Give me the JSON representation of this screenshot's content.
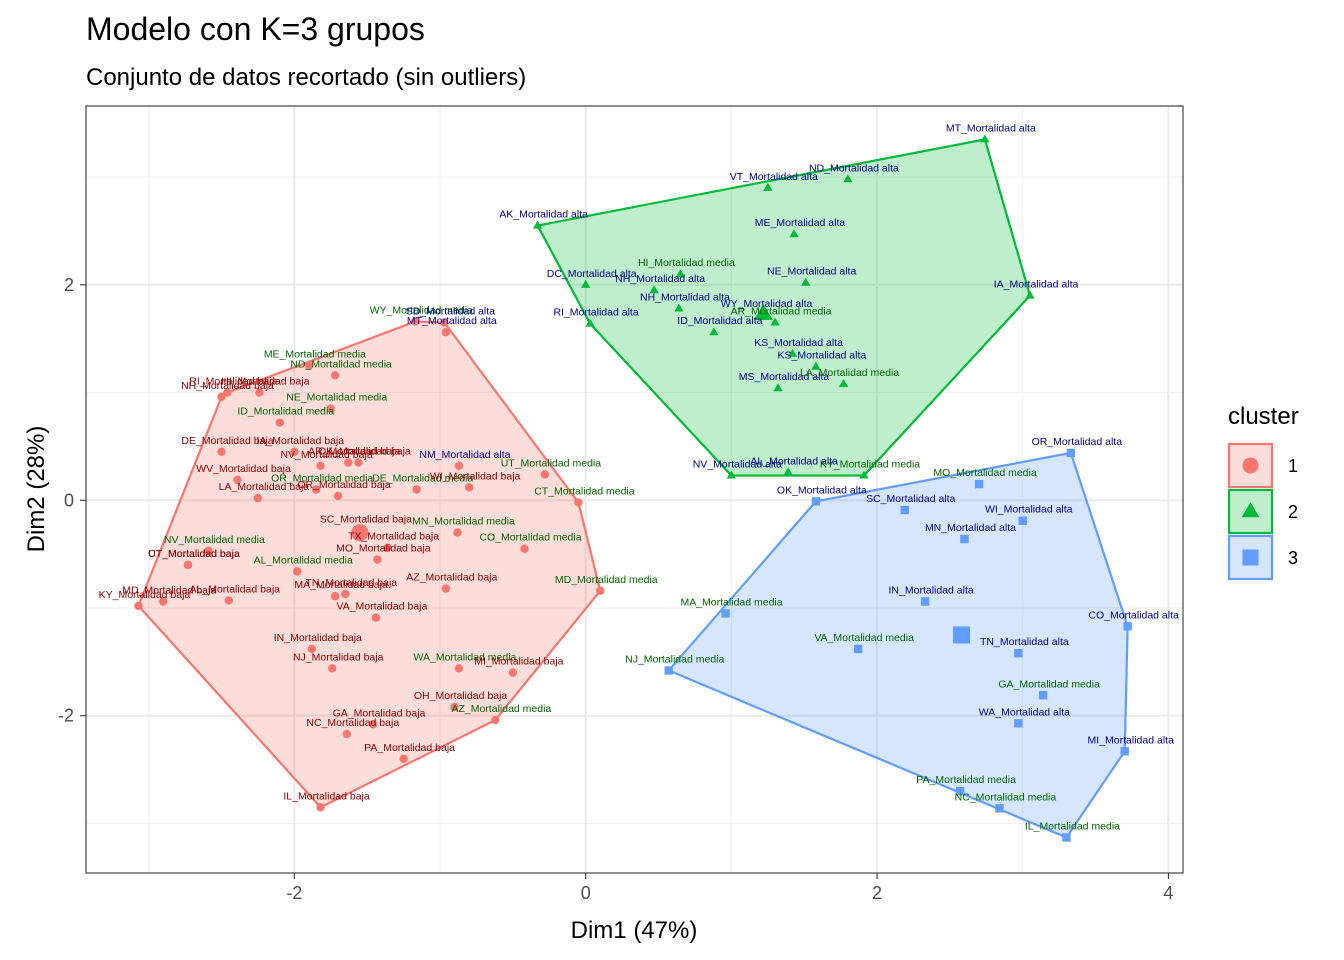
{
  "chart_data": {
    "type": "scatter",
    "title": "Modelo con K=3 grupos",
    "subtitle": "Conjunto de datos recortado (sin outliers)",
    "xlabel": "Dim1 (47%)",
    "ylabel": "Dim2 (28%)",
    "xlim": [
      -3.43,
      4.1
    ],
    "ylim": [
      -3.46,
      3.66
    ],
    "xticks": [
      -2,
      0,
      2,
      4
    ],
    "yticks": [
      -2,
      0,
      2
    ],
    "grid": true,
    "legend": {
      "title": "cluster",
      "position": "right"
    },
    "colors": {
      "1": "#F8766D",
      "2": "#00BA38",
      "3": "#619CFF",
      "hull_1": "#F8766D",
      "hull_2": "#00BA38",
      "hull_3": "#619CFF",
      "label_baja": "#8B0000",
      "label_media": "#006400",
      "label_alta": "#00008B"
    },
    "series": [
      {
        "name": "1",
        "shape": "circle",
        "points": [
          {
            "x": -3.07,
            "y": -0.98,
            "label": "KY_Mortalidad baja",
            "level": "baja"
          },
          {
            "x": -2.9,
            "y": -0.94,
            "label": "MD_Mortalidad baja",
            "level": "baja"
          },
          {
            "x": -2.73,
            "y": -0.6,
            "label": "UT_Mortalidad baja",
            "level": "baja"
          },
          {
            "x": -2.59,
            "y": -0.47,
            "label": "NV_Mortalidad media",
            "level": "media"
          },
          {
            "x": -2.5,
            "y": 0.96,
            "label": "NH_Mortalidad baja",
            "level": "baja"
          },
          {
            "x": -2.46,
            "y": 1.0,
            "label": "RI_Mortalidad baja",
            "level": "baja"
          },
          {
            "x": -2.5,
            "y": 0.45,
            "label": "DE_Mortalidad baja",
            "level": "baja"
          },
          {
            "x": -2.39,
            "y": 0.19,
            "label": "WV_Mortalidad baja",
            "level": "baja"
          },
          {
            "x": -2.25,
            "y": 0.02,
            "label": "LA_Mortalidad baja",
            "level": "baja"
          },
          {
            "x": -2.24,
            "y": 1.0,
            "label": "HI_Mortalidad baja",
            "level": "baja"
          },
          {
            "x": -2.1,
            "y": 0.72,
            "label": "ID_Mortalidad media",
            "level": "media"
          },
          {
            "x": -2.0,
            "y": 0.45,
            "label": "IA_Mortalidad baja",
            "level": "baja"
          },
          {
            "x": -2.45,
            "y": -0.93,
            "label": "AL_Mortalidad baja",
            "level": "baja"
          },
          {
            "x": -1.82,
            "y": 0.32,
            "label": "NV_Mortalidad baja",
            "level": "baja"
          },
          {
            "x": -1.85,
            "y": 0.1,
            "label": "OR_Mortalidad media",
            "level": "media"
          },
          {
            "x": -1.9,
            "y": 1.25,
            "label": "ME_Mortalidad media",
            "level": "media"
          },
          {
            "x": -1.75,
            "y": 0.85,
            "label": "NE_Mortalidad media",
            "level": "media"
          },
          {
            "x": -1.72,
            "y": 1.16,
            "label": "ND_Mortalidad media",
            "level": "media"
          },
          {
            "x": -1.63,
            "y": 0.35,
            "label": "AR_Mortalidad baja",
            "level": "baja"
          },
          {
            "x": -1.56,
            "y": 0.35,
            "label": "OK_Mortalidad baja",
            "level": "baja"
          },
          {
            "x": -1.7,
            "y": 0.04,
            "label": "OR_Mortalidad baja",
            "level": "baja"
          },
          {
            "x": -1.55,
            "y": -0.28,
            "label": "SC_Mortalidad baja",
            "level": "baja"
          },
          {
            "x": -1.43,
            "y": -0.55,
            "label": "MO_Mortalidad baja",
            "level": "baja"
          },
          {
            "x": -1.36,
            "y": -0.44,
            "label": "TX_Mortalidad baja",
            "level": "baja"
          },
          {
            "x": -1.72,
            "y": -0.89,
            "label": "MA_Mortalidad baja",
            "level": "baja"
          },
          {
            "x": -1.65,
            "y": -0.87,
            "label": "TN_Mortalidad baja",
            "level": "baja"
          },
          {
            "x": -1.44,
            "y": -1.09,
            "label": "VA_Mortalidad baja",
            "level": "baja"
          },
          {
            "x": -1.88,
            "y": -1.38,
            "label": "IN_Mortalidad baja",
            "level": "baja"
          },
          {
            "x": -1.74,
            "y": -1.56,
            "label": "NJ_Mortalidad baja",
            "level": "baja"
          },
          {
            "x": -1.64,
            "y": -2.17,
            "label": "NC_Mortalidad baja",
            "level": "baja"
          },
          {
            "x": -1.46,
            "y": -2.08,
            "label": "GA_Mortalidad baja",
            "level": "baja"
          },
          {
            "x": -1.25,
            "y": -2.4,
            "label": "PA_Mortalidad baja",
            "level": "baja"
          },
          {
            "x": -1.82,
            "y": -2.85,
            "label": "IL_Mortalidad baja",
            "level": "baja"
          },
          {
            "x": -1.17,
            "y": 1.66,
            "label": "WY_Mortalidad media",
            "level": "media"
          },
          {
            "x": -0.96,
            "y": 1.56,
            "label": "MT_Mortalidad alta",
            "level": "alta"
          },
          {
            "x": -0.97,
            "y": 1.65,
            "label": "SD_Mortalidad alta",
            "level": "alta"
          },
          {
            "x": -1.16,
            "y": 0.1,
            "label": "DE_Mortalidad media",
            "level": "media"
          },
          {
            "x": -0.87,
            "y": 0.32,
            "label": "NM_Mortalidad alta",
            "level": "alta"
          },
          {
            "x": -0.8,
            "y": 0.12,
            "label": "WI_Mortalidad baja",
            "level": "baja"
          },
          {
            "x": -0.88,
            "y": -0.3,
            "label": "MN_Mortalidad media",
            "level": "media"
          },
          {
            "x": -0.96,
            "y": -0.82,
            "label": "AZ_Mortalidad baja",
            "level": "baja"
          },
          {
            "x": -0.87,
            "y": -1.56,
            "label": "WA_Mortalidad media",
            "level": "media"
          },
          {
            "x": -0.5,
            "y": -1.6,
            "label": "MI_Mortalidad baja",
            "level": "baja"
          },
          {
            "x": -0.9,
            "y": -1.92,
            "label": "OH_Mortalidad baja",
            "level": "baja"
          },
          {
            "x": -0.62,
            "y": -2.04,
            "label": "AZ_Mortalidad media",
            "level": "media"
          },
          {
            "x": -0.42,
            "y": -0.45,
            "label": "CO_Mortalidad media",
            "level": "media"
          },
          {
            "x": -0.28,
            "y": 0.24,
            "label": "UT_Mortalidad media",
            "level": "media"
          },
          {
            "x": -0.05,
            "y": -0.02,
            "label": "CT_Mortalidad media",
            "level": "media"
          },
          {
            "x": 0.1,
            "y": -0.84,
            "label": "MD_Mortalidad media",
            "level": "media"
          },
          {
            "x": -2.73,
            "y": -0.6,
            "label": "CT_Mortalidad baja",
            "level": "baja"
          },
          {
            "x": -1.98,
            "y": -0.66,
            "label": "AL_Mortalidad media",
            "level": "media"
          }
        ],
        "centroid": {
          "x": -1.55,
          "y": -0.3
        }
      },
      {
        "name": "2",
        "shape": "triangle",
        "points": [
          {
            "x": -0.33,
            "y": 2.55,
            "label": "AK_Mortalidad alta",
            "level": "alta"
          },
          {
            "x": 0.0,
            "y": 2.0,
            "label": "DC_Mortalidad alta",
            "level": "alta"
          },
          {
            "x": 0.03,
            "y": 1.64,
            "label": "RI_Mortalidad alta",
            "level": "alta"
          },
          {
            "x": 0.47,
            "y": 1.95,
            "label": "NH_Mortalidad alta",
            "level": "alta"
          },
          {
            "x": 0.65,
            "y": 2.1,
            "label": "HI_Mortalidad media",
            "level": "media"
          },
          {
            "x": 0.64,
            "y": 1.78,
            "label": "NH_Mortalidad alta",
            "level": "alta"
          },
          {
            "x": 0.88,
            "y": 1.56,
            "label": "ID_Mortalidad alta",
            "level": "alta"
          },
          {
            "x": 1.25,
            "y": 2.9,
            "label": "VT_Mortalidad alta",
            "level": "alta"
          },
          {
            "x": 1.8,
            "y": 2.98,
            "label": "ND_Mortalidad alta",
            "level": "alta"
          },
          {
            "x": 2.74,
            "y": 3.35,
            "label": "MT_Mortalidad alta",
            "level": "alta"
          },
          {
            "x": 1.43,
            "y": 2.47,
            "label": "ME_Mortalidad alta",
            "level": "alta"
          },
          {
            "x": 1.51,
            "y": 2.02,
            "label": "NE_Mortalidad alta",
            "level": "alta"
          },
          {
            "x": 3.05,
            "y": 1.9,
            "label": "IA_Mortalidad alta",
            "level": "alta"
          },
          {
            "x": 1.2,
            "y": 1.72,
            "label": "WY_Mortalidad alta",
            "level": "alta"
          },
          {
            "x": 1.3,
            "y": 1.65,
            "label": "AR_Mortalidad media",
            "level": "media"
          },
          {
            "x": 1.42,
            "y": 1.36,
            "label": "KS_Mortalidad alta",
            "level": "alta"
          },
          {
            "x": 1.58,
            "y": 1.24,
            "label": "KS_Mortalidad alta",
            "level": "alta"
          },
          {
            "x": 1.32,
            "y": 1.04,
            "label": "MS_Mortalidad alta",
            "level": "alta"
          },
          {
            "x": 1.77,
            "y": 1.08,
            "label": "LA_Mortalidad media",
            "level": "media"
          },
          {
            "x": 1.0,
            "y": 0.23,
            "label": "NV_Mortalidad alta",
            "level": "alta"
          },
          {
            "x": 1.39,
            "y": 0.26,
            "label": "AL_Mortalidad alta",
            "level": "alta"
          },
          {
            "x": 1.91,
            "y": 0.23,
            "label": "KY_Mortalidad media",
            "level": "media"
          }
        ],
        "centroid": {
          "x": 1.22,
          "y": 1.73
        }
      },
      {
        "name": "3",
        "shape": "square",
        "points": [
          {
            "x": 3.33,
            "y": 0.44,
            "label": "OR_Mortalidad alta",
            "level": "alta"
          },
          {
            "x": 2.7,
            "y": 0.15,
            "label": "MO_Mortalidad media",
            "level": "media"
          },
          {
            "x": 3.0,
            "y": -0.19,
            "label": "WI_Mortalidad alta",
            "level": "alta"
          },
          {
            "x": 1.58,
            "y": -0.01,
            "label": "OK_Mortalidad alta",
            "level": "alta"
          },
          {
            "x": 2.19,
            "y": -0.09,
            "label": "SC_Mortalidad alta",
            "level": "alta"
          },
          {
            "x": 2.6,
            "y": -0.36,
            "label": "MN_Mortalidad alta",
            "level": "alta"
          },
          {
            "x": 3.72,
            "y": -1.17,
            "label": "CO_Mortalidad alta",
            "level": "alta"
          },
          {
            "x": 2.33,
            "y": -0.94,
            "label": "IN_Mortalidad alta",
            "level": "alta"
          },
          {
            "x": 0.96,
            "y": -1.05,
            "label": "MA_Mortalidad media",
            "level": "media"
          },
          {
            "x": 1.87,
            "y": -1.38,
            "label": "VA_Mortalidad media",
            "level": "media"
          },
          {
            "x": 0.57,
            "y": -1.58,
            "label": "NJ_Mortalidad media",
            "level": "media"
          },
          {
            "x": 2.97,
            "y": -1.42,
            "label": "TN_Mortalidad alta",
            "level": "alta"
          },
          {
            "x": 3.14,
            "y": -1.81,
            "label": "GA_Mortalidad media",
            "level": "media"
          },
          {
            "x": 2.97,
            "y": -2.07,
            "label": "WA_Mortalidad alta",
            "level": "alta"
          },
          {
            "x": 3.7,
            "y": -2.33,
            "label": "MI_Mortalidad alta",
            "level": "alta"
          },
          {
            "x": 2.57,
            "y": -2.7,
            "label": "PA_Mortalidad media",
            "level": "media"
          },
          {
            "x": 2.84,
            "y": -2.86,
            "label": "NC_Mortalidad media",
            "level": "media"
          },
          {
            "x": 3.3,
            "y": -3.13,
            "label": "IL_Mortalidad media",
            "level": "media"
          }
        ],
        "centroid": {
          "x": 2.58,
          "y": -1.25
        }
      }
    ]
  }
}
